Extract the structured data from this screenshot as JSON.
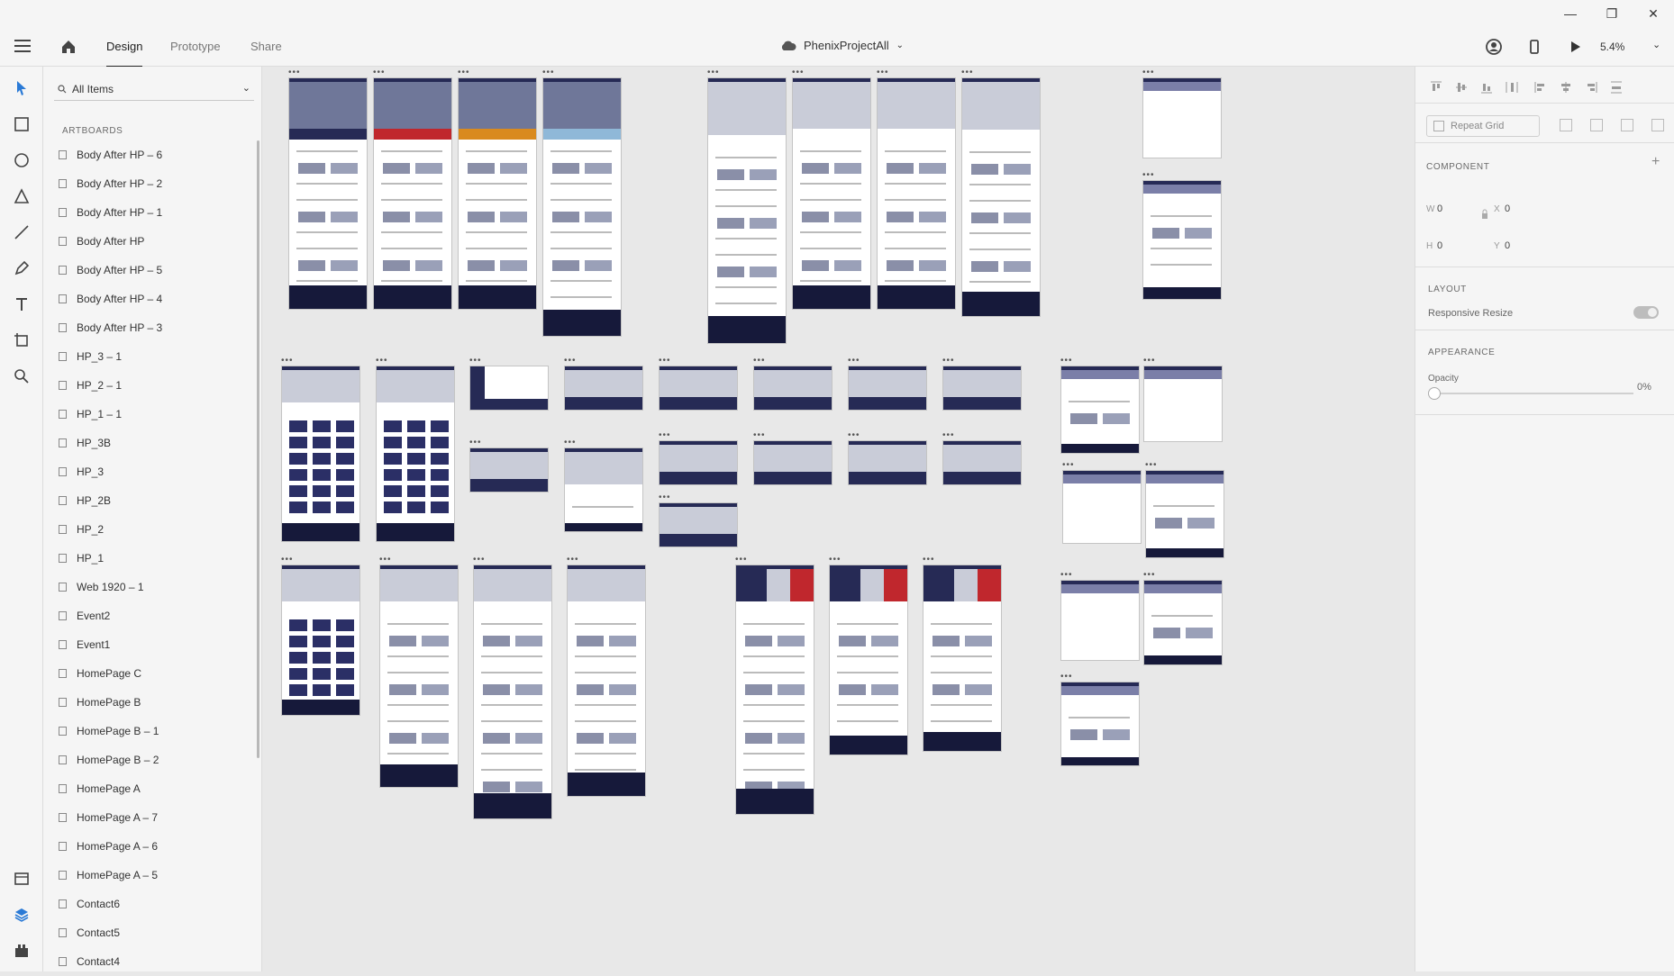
{
  "window": {
    "minimize": "—",
    "restore": "❐",
    "close": "✕"
  },
  "header": {
    "tabs": [
      {
        "label": "Design",
        "active": true
      },
      {
        "label": "Prototype",
        "active": false
      },
      {
        "label": "Share",
        "active": false
      }
    ],
    "doc_title": "PhenixProjectAll",
    "zoom": "5.4%"
  },
  "layers": {
    "filter": "All Items",
    "section": "ARTBOARDS",
    "items": [
      "Body After HP – 6",
      "Body After HP – 2",
      "Body After HP – 1",
      "Body After HP",
      "Body After HP – 5",
      "Body After HP – 4",
      "Body After HP – 3",
      "HP_3 – 1",
      "HP_2 – 1",
      "HP_1 – 1",
      "HP_3B",
      "HP_3",
      "HP_2B",
      "HP_2",
      "HP_1",
      "Web 1920 – 1",
      "Event2",
      "Event1",
      "HomePage C",
      "HomePage B",
      "HomePage B – 1",
      "HomePage B – 2",
      "HomePage A",
      "HomePage A – 7",
      "HomePage A – 6",
      "HomePage A – 5",
      "Contact6",
      "Contact5",
      "Contact4"
    ]
  },
  "props": {
    "repeat_grid": "Repeat Grid",
    "component": "COMPONENT",
    "w_label": "W",
    "w": "0",
    "x_label": "X",
    "x": "0",
    "h_label": "H",
    "h": "0",
    "y_label": "Y",
    "y": "0",
    "layout": "LAYOUT",
    "responsive_resize": "Responsive Resize",
    "responsive_resize_on": false,
    "appearance": "APPEARANCE",
    "opacity_label": "Opacity",
    "opacity": "0%"
  },
  "colors": {
    "navy": "#262a55",
    "footer": "#16193a",
    "hero": "#7b82a8",
    "accent_red": "#c0272d",
    "accent_orange": "#d98a1e",
    "accent_blue": "#8fb8d8"
  },
  "icons": {
    "select": "select-arrow-icon",
    "rectangle": "rectangle-tool-icon",
    "ellipse": "ellipse-tool-icon",
    "polygon": "polygon-tool-icon",
    "line": "line-tool-icon",
    "pen": "pen-tool-icon",
    "text": "text-tool-icon",
    "artboard": "artboard-tool-icon",
    "zoom": "zoom-tool-icon",
    "assets": "assets-icon",
    "layers": "layers-icon",
    "plugins": "plugins-icon"
  }
}
